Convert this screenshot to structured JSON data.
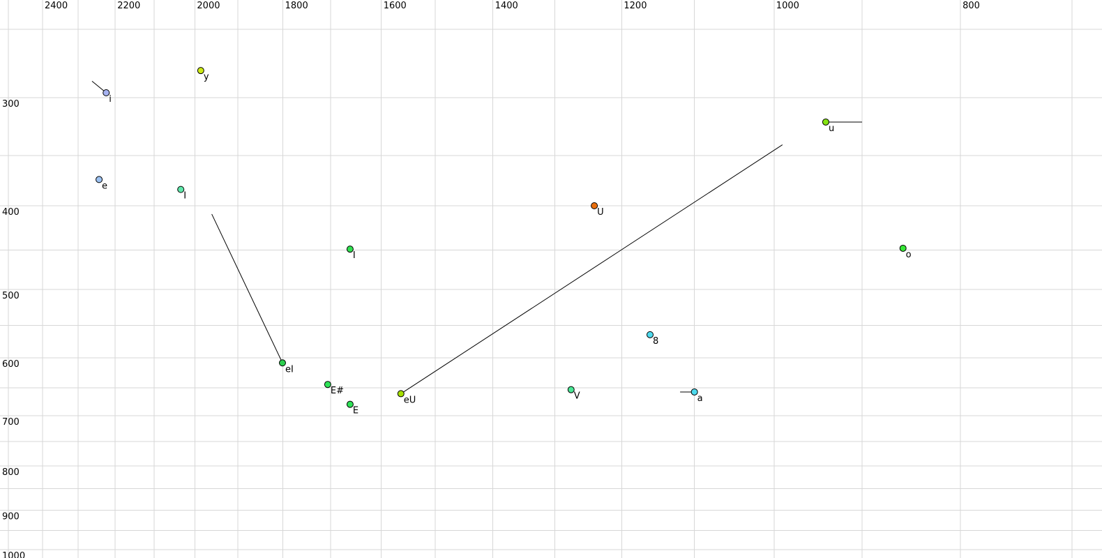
{
  "chart_data": {
    "type": "scatter",
    "description": "Vowel formant plot: F2 (Hz) on reversed log x-axis (labels on top), F1 (Hz) on reversed log y-axis (labels on left). Points are vowel tokens with phonetic labels; black line segments are formant trajectories (diphthong glides).",
    "x_axis": {
      "unit_values_hz": true,
      "scale": "log",
      "reversed": true,
      "position": "top",
      "tick_labels": [
        "2400",
        "2200",
        "2000",
        "1800",
        "1600",
        "1400",
        "1200",
        "1000",
        "800"
      ],
      "tick_values": [
        2400,
        2200,
        2000,
        1800,
        1600,
        1400,
        1200,
        1000,
        800
      ],
      "gridline_values": [
        2500,
        2400,
        2300,
        2200,
        2100,
        2000,
        1900,
        1800,
        1700,
        1600,
        1500,
        1400,
        1300,
        1200,
        1100,
        1000,
        900,
        800,
        700
      ],
      "range": [
        2510,
        680
      ]
    },
    "y_axis": {
      "unit_values_hz": true,
      "scale": "log",
      "reversed": true,
      "position": "left",
      "tick_labels": [
        "300",
        "400",
        "500",
        "600",
        "700",
        "800",
        "900",
        "1000"
      ],
      "tick_values": [
        300,
        400,
        500,
        600,
        700,
        800,
        900,
        1000
      ],
      "gridline_values": [
        250,
        300,
        350,
        400,
        450,
        500,
        550,
        600,
        650,
        700,
        750,
        800,
        850,
        900,
        950,
        1000
      ],
      "range": [
        230,
        1020
      ]
    },
    "grid": true,
    "legend": false,
    "points": [
      {
        "label": "i",
        "f2": 2224,
        "f1": 296,
        "color": "#a6b2f0",
        "tail": {
          "f2": 2262,
          "f1": 287
        }
      },
      {
        "label": "y",
        "f2": 1986,
        "f1": 279,
        "color": "#cdea16"
      },
      {
        "label": "e",
        "f2": 2243,
        "f1": 373,
        "color": "#9cc2f2"
      },
      {
        "label": "I",
        "f2": 2034,
        "f1": 383,
        "color": "#5fe8ab"
      },
      {
        "label": "u",
        "f2": 940,
        "f1": 320,
        "color": "#85e312",
        "tail": {
          "f2": 900,
          "f1": 320
        }
      },
      {
        "label": "U",
        "f2": 1240,
        "f1": 400,
        "color": "#e86e0d"
      },
      {
        "label": "I",
        "f2": 1661,
        "f1": 449,
        "color": "#31e151"
      },
      {
        "label": "o",
        "f2": 857,
        "f1": 448,
        "color": "#36e636"
      },
      {
        "label": "eI",
        "f2": 1801,
        "f1": 608,
        "color": "#2dce4f",
        "tail": {
          "f2": 1960,
          "f1": 409
        }
      },
      {
        "label": "E#",
        "f2": 1706,
        "f1": 644,
        "color": "#2fe257"
      },
      {
        "label": "E",
        "f2": 1661,
        "f1": 679,
        "color": "#2fe257"
      },
      {
        "label": "eU",
        "f2": 1563,
        "f1": 660,
        "color": "#a6df00",
        "tail": {
          "f2": 990,
          "f1": 340
        }
      },
      {
        "label": "V",
        "f2": 1275,
        "f1": 653,
        "color": "#49e795"
      },
      {
        "label": "8",
        "f2": 1160,
        "f1": 564,
        "color": "#4edaee"
      },
      {
        "label": "a",
        "f2": 1100,
        "f1": 657,
        "color": "#4edaee",
        "tail": {
          "f2": 1119,
          "f1": 657
        }
      }
    ],
    "colors": {
      "background": "#ffffff",
      "gridline": "#d7d7d7",
      "trajectory_line": "#000000",
      "point_outline": "#000000",
      "tick_text": "#000000"
    }
  }
}
